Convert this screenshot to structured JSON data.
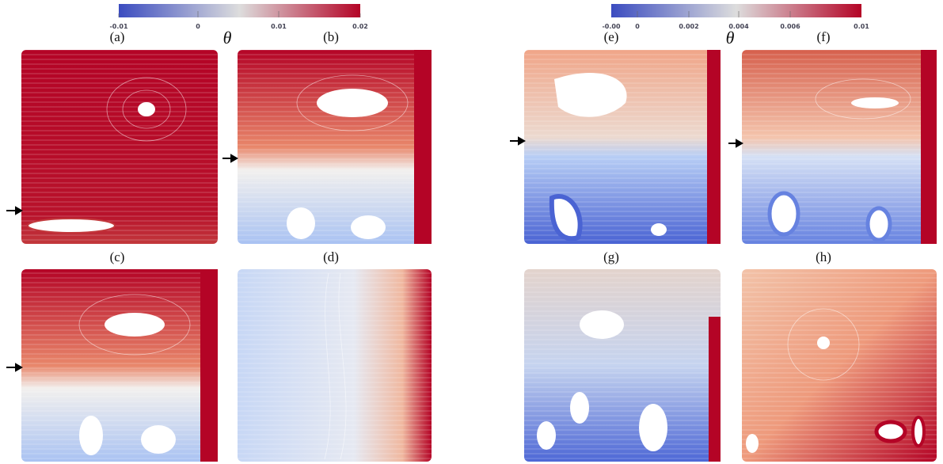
{
  "colorbars": [
    {
      "ticks": [
        "-0.01",
        "0",
        "0.01",
        "0.02"
      ],
      "symbol": "θ"
    },
    {
      "ticks": [
        "-0.00",
        "0",
        "0.002",
        "0.004",
        "0.006",
        "0.01"
      ],
      "symbol": "θ"
    }
  ],
  "panels": [
    "(a)",
    "(b)",
    "(c)",
    "(d)",
    "(e)",
    "(f)",
    "(g)",
    "(h)"
  ]
}
